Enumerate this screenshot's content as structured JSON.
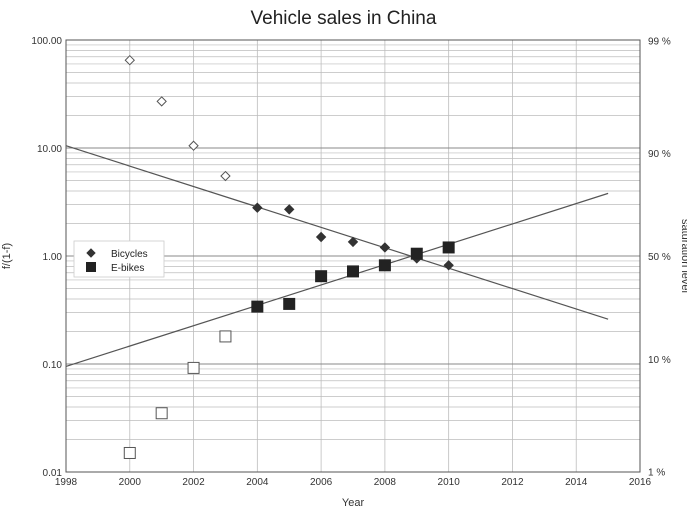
{
  "chart_data": {
    "type": "scatter",
    "title": "Vehicle sales in China",
    "xlabel": "Year",
    "ylabel": "f/(1-f)",
    "y2label": "saturation level",
    "xlim": [
      1998,
      2016
    ],
    "ylim": [
      0.01,
      100
    ],
    "yscale": "log",
    "grid": true,
    "legend_position": "left",
    "x_ticks": [
      "1998",
      "2000",
      "2002",
      "2004",
      "2006",
      "2008",
      "2010",
      "2012",
      "2014",
      "2016"
    ],
    "y_ticks": [
      "0.01",
      "0.10",
      "1.00",
      "10.00",
      "100.00"
    ],
    "y2_ticks": [
      "1 %",
      "10 %",
      "50 %",
      "90 %",
      "99 %"
    ],
    "series": [
      {
        "name": "Bicycles",
        "marker": "diamond",
        "color": "#333333",
        "points": [
          {
            "x": 2000,
            "y": 65,
            "filled": false
          },
          {
            "x": 2001,
            "y": 27,
            "filled": false
          },
          {
            "x": 2002,
            "y": 10.5,
            "filled": false
          },
          {
            "x": 2003,
            "y": 5.5,
            "filled": false
          },
          {
            "x": 2004,
            "y": 2.8,
            "filled": true
          },
          {
            "x": 2005,
            "y": 2.7,
            "filled": true
          },
          {
            "x": 2006,
            "y": 1.5,
            "filled": true
          },
          {
            "x": 2007,
            "y": 1.35,
            "filled": true
          },
          {
            "x": 2008,
            "y": 1.2,
            "filled": true
          },
          {
            "x": 2009,
            "y": 0.95,
            "filled": true
          },
          {
            "x": 2010,
            "y": 0.82,
            "filled": true
          }
        ],
        "trend": [
          {
            "x": 1998,
            "y": 10.5
          },
          {
            "x": 2015,
            "y": 0.26
          }
        ]
      },
      {
        "name": "E-bikes",
        "marker": "square",
        "color": "#222222",
        "points": [
          {
            "x": 2000,
            "y": 0.015,
            "filled": false
          },
          {
            "x": 2001,
            "y": 0.035,
            "filled": false
          },
          {
            "x": 2002,
            "y": 0.092,
            "filled": false
          },
          {
            "x": 2003,
            "y": 0.18,
            "filled": false
          },
          {
            "x": 2004,
            "y": 0.34,
            "filled": true
          },
          {
            "x": 2005,
            "y": 0.36,
            "filled": true
          },
          {
            "x": 2006,
            "y": 0.65,
            "filled": true
          },
          {
            "x": 2007,
            "y": 0.72,
            "filled": true
          },
          {
            "x": 2008,
            "y": 0.82,
            "filled": true
          },
          {
            "x": 2009,
            "y": 1.05,
            "filled": true
          },
          {
            "x": 2010,
            "y": 1.2,
            "filled": true
          }
        ],
        "trend": [
          {
            "x": 1998,
            "y": 0.095
          },
          {
            "x": 2015,
            "y": 3.8
          }
        ]
      }
    ]
  }
}
